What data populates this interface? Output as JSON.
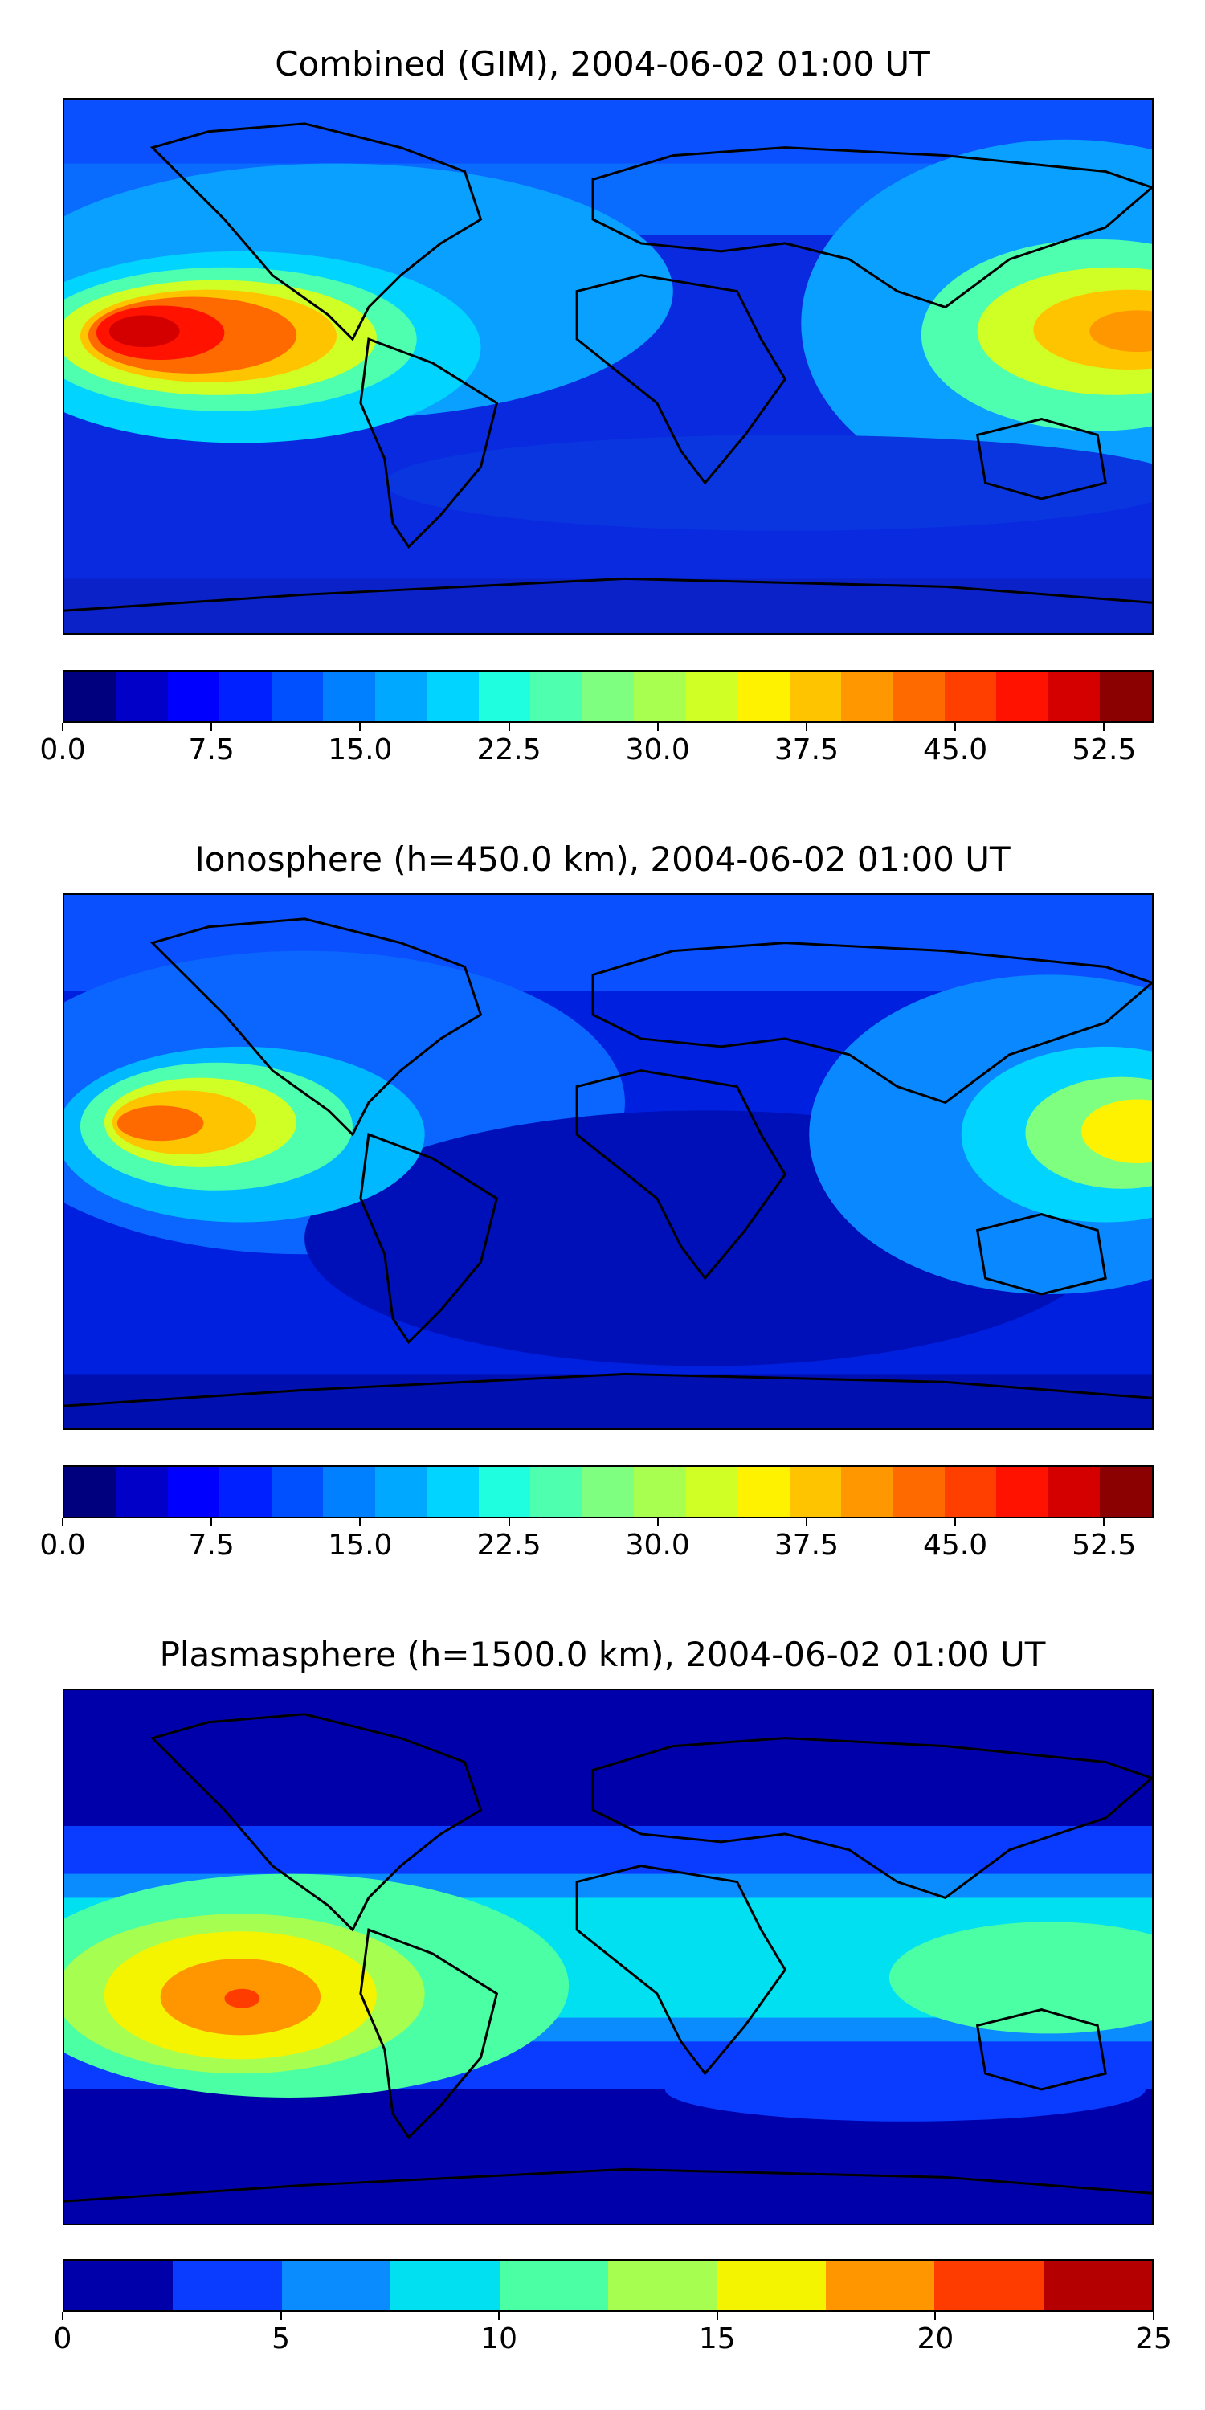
{
  "panels": [
    {
      "title": "Combined (GIM), 2004-06-02 01:00 UT",
      "colorbar": {
        "colors": [
          "#00007f",
          "#0000c8",
          "#0000ff",
          "#0020ff",
          "#0050ff",
          "#0080ff",
          "#00a8ff",
          "#00d4ff",
          "#1fffe0",
          "#4effb0",
          "#7fff80",
          "#a8ff50",
          "#d0ff26",
          "#fff200",
          "#ffc400",
          "#ff9800",
          "#ff6a00",
          "#ff3f00",
          "#ff1300",
          "#d40000",
          "#8b0000"
        ],
        "tick_labels": [
          "0.0",
          "7.5",
          "15.0",
          "22.5",
          "30.0",
          "37.5",
          "45.0",
          "52.5"
        ],
        "tick_values": [
          0,
          7.5,
          15,
          22.5,
          30,
          37.5,
          45,
          52.5
        ],
        "range": [
          0,
          55
        ]
      }
    },
    {
      "title": "Ionosphere  (h=450.0 km), 2004-06-02 01:00 UT",
      "colorbar": {
        "colors": [
          "#00007f",
          "#0000c8",
          "#0000ff",
          "#0020ff",
          "#0050ff",
          "#0080ff",
          "#00a8ff",
          "#00d4ff",
          "#1fffe0",
          "#4effb0",
          "#7fff80",
          "#a8ff50",
          "#d0ff26",
          "#fff200",
          "#ffc400",
          "#ff9800",
          "#ff6a00",
          "#ff3f00",
          "#ff1300",
          "#d40000",
          "#8b0000"
        ],
        "tick_labels": [
          "0.0",
          "7.5",
          "15.0",
          "22.5",
          "30.0",
          "37.5",
          "45.0",
          "52.5"
        ],
        "tick_values": [
          0,
          7.5,
          15,
          22.5,
          30,
          37.5,
          45,
          52.5
        ],
        "range": [
          0,
          55
        ]
      }
    },
    {
      "title": "Plasmasphere (h=1500.0 km), 2004-06-02 01:00 UT",
      "colorbar": {
        "colors": [
          "#0000aa",
          "#0a3cff",
          "#0a8cff",
          "#00e0f0",
          "#4affa4",
          "#a6ff50",
          "#f4f400",
          "#ff9600",
          "#ff3c00",
          "#b40000"
        ],
        "tick_labels": [
          "0",
          "5",
          "10",
          "15",
          "20",
          "25"
        ],
        "tick_values": [
          0,
          5,
          10,
          15,
          20,
          25
        ],
        "range": [
          0,
          25
        ]
      }
    }
  ]
}
